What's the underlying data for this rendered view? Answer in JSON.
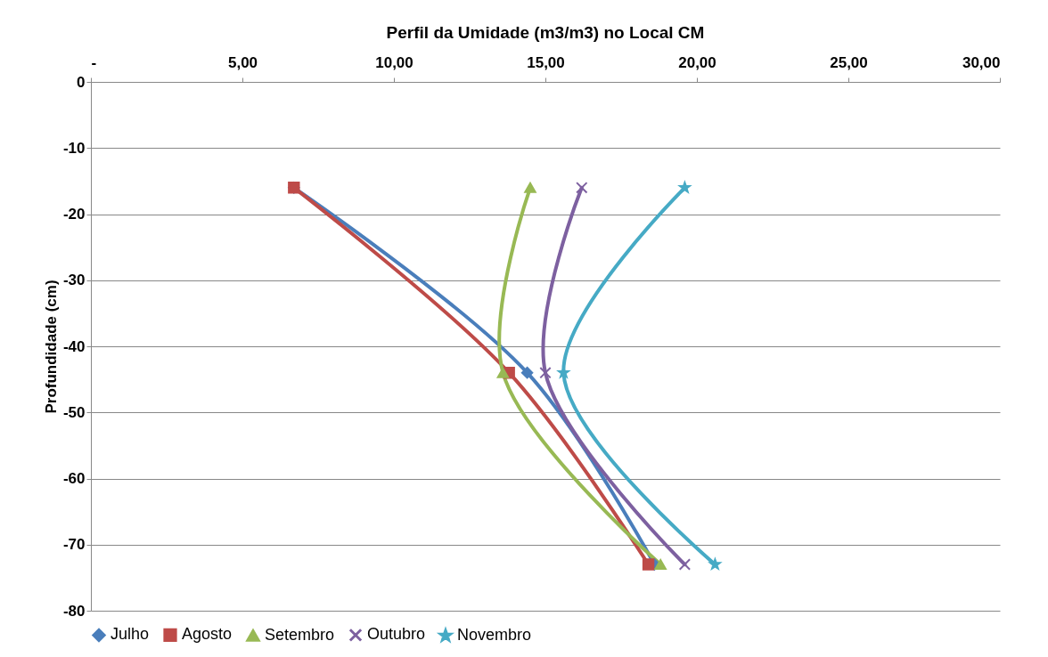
{
  "chart_data": {
    "type": "line",
    "title": "Perfil da Umidade (m3/m3) no Local CM",
    "ylabel": "Profundidade (cm)",
    "xlim": [
      0,
      30
    ],
    "xticks": [
      {
        "value": 0,
        "label": "-"
      },
      {
        "value": 5,
        "label": "5,00"
      },
      {
        "value": 10,
        "label": "10,00"
      },
      {
        "value": 15,
        "label": "15,00"
      },
      {
        "value": 20,
        "label": "20,00"
      },
      {
        "value": 25,
        "label": "25,00"
      },
      {
        "value": 30,
        "label": "30,00"
      }
    ],
    "ylim": [
      -80,
      0
    ],
    "yticks": [
      0,
      -10,
      -20,
      -30,
      -40,
      -50,
      -60,
      -70,
      -80
    ],
    "grid": "y",
    "legend": "bottom",
    "series": [
      {
        "name": "Julho",
        "color": "#4a7ebb",
        "marker": "diamond",
        "x": [
          6.7,
          14.4,
          18.6
        ],
        "values": [
          -16,
          -44,
          -73
        ]
      },
      {
        "name": "Agosto",
        "color": "#be4b48",
        "marker": "square",
        "x": [
          6.7,
          13.8,
          18.4
        ],
        "values": [
          -16,
          -44,
          -73
        ]
      },
      {
        "name": "Setembro",
        "color": "#98b954",
        "marker": "triangle",
        "x": [
          14.5,
          13.6,
          18.8
        ],
        "values": [
          -16,
          -44,
          -73
        ]
      },
      {
        "name": "Outubro",
        "color": "#7d60a0",
        "marker": "cross",
        "x": [
          16.2,
          15.0,
          19.6
        ],
        "values": [
          -16,
          -44,
          -73
        ]
      },
      {
        "name": "Novembro",
        "color": "#46aac5",
        "marker": "star",
        "x": [
          19.6,
          15.6,
          20.6
        ],
        "values": [
          -16,
          -44,
          -73
        ]
      }
    ]
  }
}
